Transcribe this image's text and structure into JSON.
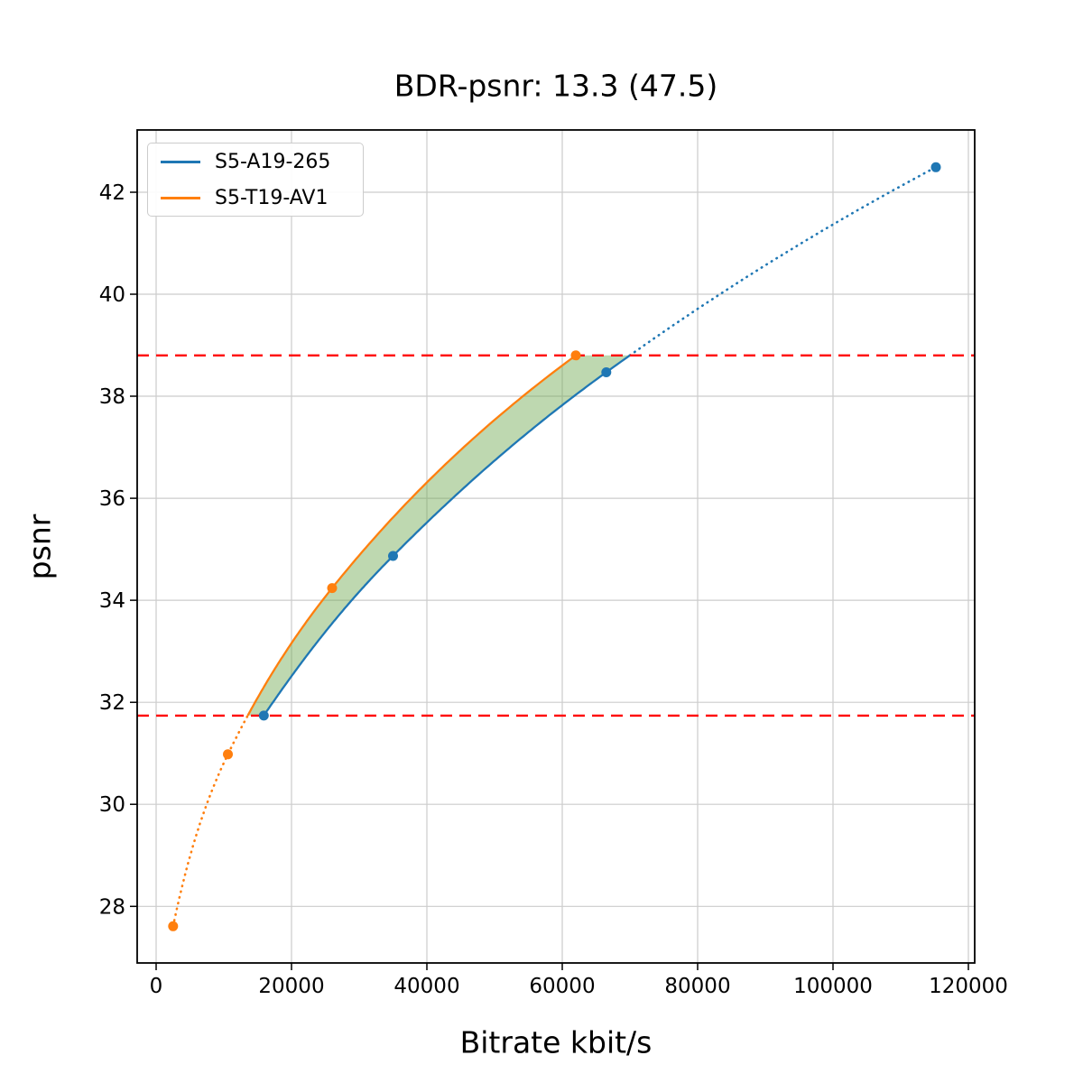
{
  "figure": {
    "title": "BDR-psnr: 13.3 (47.5)",
    "xlabel": "Bitrate kbit/s",
    "ylabel": "psnr"
  },
  "chart_data": {
    "type": "line",
    "title": "BDR-psnr: 13.3 (47.5)",
    "xlabel": "Bitrate kbit/s",
    "ylabel": "psnr",
    "xlim": [
      -2800,
      120933
    ],
    "ylim": [
      26.89,
      43.22
    ],
    "x_ticks": [
      0,
      20000,
      40000,
      60000,
      80000,
      100000,
      120000
    ],
    "x_tick_labels": [
      "0",
      "20000",
      "40000",
      "60000",
      "80000",
      "100000",
      "120000"
    ],
    "y_ticks": [
      28,
      30,
      32,
      34,
      36,
      38,
      40,
      42
    ],
    "y_tick_labels": [
      "28",
      "30",
      "32",
      "34",
      "36",
      "38",
      "40",
      "42"
    ],
    "grid": true,
    "grid_color": "#cccccc",
    "legend_position": "upper left",
    "series": [
      {
        "name": "S5-A19-265",
        "color": "#1f77b4",
        "marker": "circle",
        "points": [
          [
            15900,
            31.74
          ],
          [
            35000,
            34.87
          ],
          [
            66500,
            38.47
          ],
          [
            115200,
            42.49
          ]
        ]
      },
      {
        "name": "S5-T19-AV1",
        "color": "#ff7f0e",
        "marker": "circle",
        "points": [
          [
            2500,
            27.61
          ],
          [
            10600,
            30.98
          ],
          [
            26000,
            34.24
          ],
          [
            62000,
            38.8
          ]
        ]
      }
    ],
    "overlap_interval_lines": {
      "color": "#ff0000",
      "style": "dashed",
      "values": [
        31.74,
        38.8
      ]
    },
    "shaded_region": {
      "color": "#6fa84f",
      "opacity": 0.45,
      "psnr_range": [
        31.74,
        38.8
      ]
    }
  }
}
